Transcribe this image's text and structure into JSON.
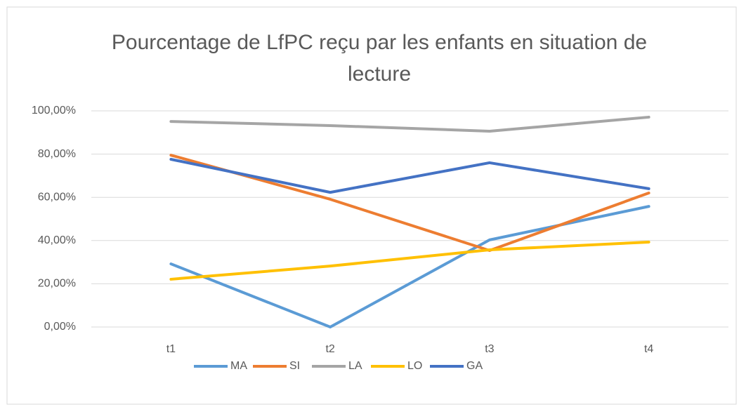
{
  "chart_data": {
    "type": "line",
    "title": "Pourcentage de LfPC reçu par les enfants en situation de lecture",
    "categories": [
      "t1",
      "t2",
      "t3",
      "t4"
    ],
    "series": [
      {
        "name": "MA",
        "color": "#5b9bd5",
        "values": [
          29.2,
          0,
          40.3,
          55.8
        ]
      },
      {
        "name": "SI",
        "color": "#ed7d31",
        "values": [
          79.5,
          59.1,
          35.4,
          62.0
        ]
      },
      {
        "name": "LA",
        "color": "#a5a5a5",
        "values": [
          95.1,
          93.2,
          90.6,
          97.1
        ]
      },
      {
        "name": "LO",
        "color": "#ffc000",
        "values": [
          22.1,
          28.2,
          35.7,
          39.3
        ]
      },
      {
        "name": "GA",
        "color": "#4472c4",
        "values": [
          77.6,
          62.3,
          76.0,
          64.0
        ]
      }
    ],
    "ylim": [
      0,
      100
    ],
    "yticks": [
      {
        "value": 0,
        "label": "0,00%"
      },
      {
        "value": 20,
        "label": "20,00%"
      },
      {
        "value": 40,
        "label": "40,00%"
      },
      {
        "value": 60,
        "label": "60,00%"
      },
      {
        "value": 80,
        "label": "80,00%"
      },
      {
        "value": 100,
        "label": "100,00%"
      }
    ],
    "grid": true,
    "legend": "bottom"
  }
}
